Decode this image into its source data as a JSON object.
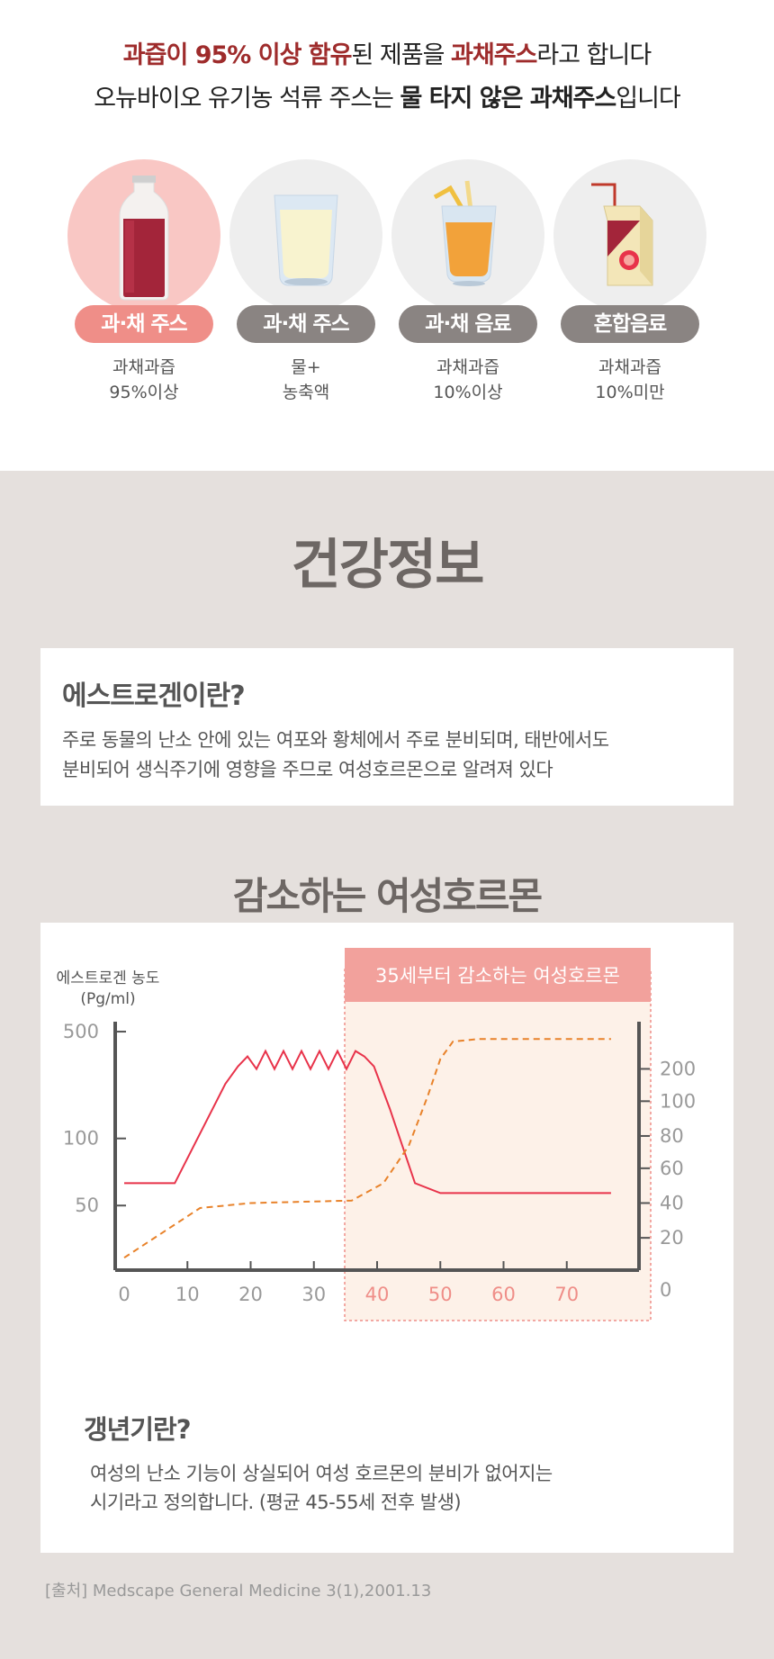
{
  "headline": {
    "line1_a": "과즙이 95% 이상 함유",
    "line1_b": "된 제품을 ",
    "line1_c": "과채주스",
    "line1_d": "라고 합니다",
    "line2_a": "오뉴바이오 유기농 석류 주스는 ",
    "line2_b": "물 타지 않은 과채주스",
    "line2_c": "입니다"
  },
  "categories": [
    {
      "label": "과·채 주스",
      "desc1": "과채과즙",
      "desc2": "95%이상",
      "icon": "red-juice-bottle-icon",
      "highlight": true
    },
    {
      "label": "과·채 주스",
      "desc1": "물+",
      "desc2": "농축액",
      "icon": "juice-glass-icon",
      "highlight": false
    },
    {
      "label": "과·채 음료",
      "desc1": "과채과즙",
      "desc2": "10%이상",
      "icon": "orange-drink-straw-icon",
      "highlight": false
    },
    {
      "label": "혼합음료",
      "desc1": "과채과즙",
      "desc2": "10%미만",
      "icon": "juice-carton-icon",
      "highlight": false
    }
  ],
  "health_title": "건강정보",
  "estrogen": {
    "title": "에스트로겐이란?",
    "line1": "주로 동물의 난소 안에 있는 여포와 황체에서 주로 분비되며, 태반에서도",
    "line2": "분비되어 생식주기에 영향을 주므로 여성호르몬으로 알려져 있다"
  },
  "decline_title": "감소하는 여성호르몬",
  "chart_data": {
    "type": "line",
    "ylabel_line1": "에스트로겐 농도",
    "ylabel_line2": "(Pg/ml)",
    "highlight_label": "35세부터 감소하는 여성호르몬",
    "highlight_from_age": 35,
    "x_ticks": [
      "0",
      "10",
      "20",
      "30",
      "40",
      "50",
      "60",
      "70"
    ],
    "y_left_ticks": [
      "500",
      "100",
      "50"
    ],
    "y_right_ticks": [
      "200",
      "100",
      "80",
      "60",
      "40",
      "20",
      "0"
    ],
    "series": [
      {
        "color": "#e8334a",
        "style": "solid",
        "x": [
          0,
          8,
          13,
          16,
          18,
          19.5,
          38,
          39.5,
          42,
          46,
          50,
          77
        ],
        "y_level": [
          0.35,
          0.35,
          0.6,
          0.75,
          0.82,
          0.86,
          0.86,
          0.82,
          0.65,
          0.35,
          0.31,
          0.31
        ]
      },
      {
        "color": "#e8822a",
        "style": "dashed",
        "x": [
          0,
          12,
          20,
          36,
          41,
          45,
          48,
          50,
          52,
          56,
          77
        ],
        "y_level": [
          0.05,
          0.25,
          0.27,
          0.28,
          0.35,
          0.5,
          0.7,
          0.85,
          0.92,
          0.93,
          0.93
        ]
      }
    ],
    "colors": {
      "female_line": "#e8334a",
      "dashed_line": "#e8822a",
      "highlight_fill": "#fdf1e8",
      "highlight_header": "#f2a19c"
    }
  },
  "menopause": {
    "title": "갱년기란?",
    "line1": "여성의 난소 기능이 상실되어 여성 호르몬의 분비가 없어지는",
    "line2": "시기라고 정의합니다. (평균 45-55세 전후 발생)"
  },
  "source": "[출처] Medscape General Medicine 3(1),2001.13"
}
